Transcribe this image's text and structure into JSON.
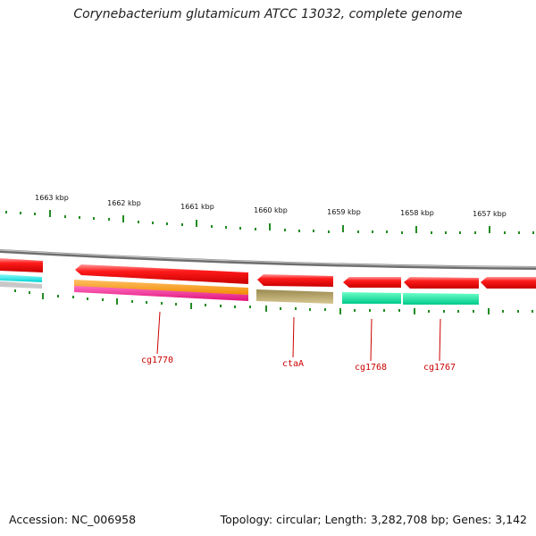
{
  "title": "Corynebacterium glutamicum ATCC 13032, complete genome",
  "footer": {
    "accession": "Accession: NC_006958",
    "summary": "Topology: circular; Length: 3,282,708 bp; Genes: 3,142"
  },
  "ruler": {
    "labels": [
      "1663 kbp",
      "1662 kbp",
      "1661 kbp",
      "1660 kbp",
      "1659 kbp",
      "1658 kbp",
      "1657 kbp"
    ],
    "tick_color": "#228B22"
  },
  "genes": [
    {
      "name": "cg1770",
      "color": "#ff0000"
    },
    {
      "name": "ctaA",
      "color": "#ff0000"
    },
    {
      "name": "cg1768",
      "color": "#ff0000"
    },
    {
      "name": "cg1767",
      "color": "#ff0000"
    }
  ],
  "feature_colors": {
    "gene": "#ff0000",
    "backbone": "#888888",
    "orange": "#ff9900",
    "magenta": "#ff1493",
    "cyan": "#00e5e5",
    "olive": "#b8a45c",
    "green": "#00e5a0",
    "silver": "#c8c8c8",
    "label_line": "#cc0000"
  }
}
